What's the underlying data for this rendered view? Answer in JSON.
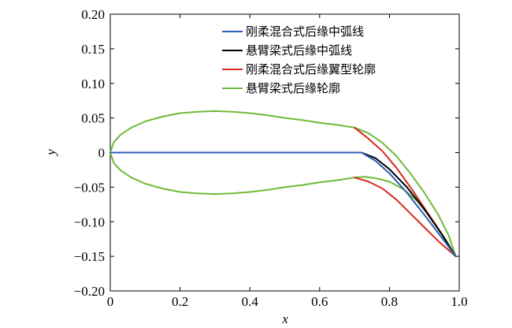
{
  "chart_data": {
    "type": "line",
    "title": "",
    "xlabel": "x",
    "ylabel": "y",
    "xlim": [
      0,
      1.0
    ],
    "ylim": [
      -0.2,
      0.2
    ],
    "xticks": [
      0,
      0.2,
      0.4,
      0.6,
      0.8,
      1.0
    ],
    "xtick_labels": [
      "0",
      "0.2",
      "0.4",
      "0.6",
      "0.8",
      "1.0"
    ],
    "yticks": [
      0.2,
      0.15,
      0.1,
      0.05,
      0,
      -0.05,
      -0.1,
      -0.15,
      -0.2
    ],
    "ytick_labels": [
      "0.20",
      "0.15",
      "0.10",
      "0.05",
      "0",
      "−0.05",
      "−0.10",
      "−0.15",
      "−0.20"
    ],
    "grid": false,
    "legend_position": "top-right",
    "series": [
      {
        "name": "刚柔混合式后缘中弧线",
        "color": "#2b5fb8",
        "points": [
          {
            "x": 0.0,
            "y": 0.0
          },
          {
            "x": 0.7,
            "y": 0.0
          },
          {
            "x": 0.72,
            "y": 0.0
          },
          {
            "x": 0.76,
            "y": -0.012
          },
          {
            "x": 0.8,
            "y": -0.03
          },
          {
            "x": 0.85,
            "y": -0.058
          },
          {
            "x": 0.9,
            "y": -0.09
          },
          {
            "x": 0.95,
            "y": -0.123
          },
          {
            "x": 0.99,
            "y": -0.15
          }
        ]
      },
      {
        "name": "悬臂梁式后缘中弧线",
        "color": "#000000",
        "points": [
          {
            "x": 0.0,
            "y": 0.0
          },
          {
            "x": 0.7,
            "y": 0.0
          },
          {
            "x": 0.72,
            "y": 0.0
          },
          {
            "x": 0.76,
            "y": -0.008
          },
          {
            "x": 0.8,
            "y": -0.024
          },
          {
            "x": 0.85,
            "y": -0.05
          },
          {
            "x": 0.9,
            "y": -0.082
          },
          {
            "x": 0.95,
            "y": -0.118
          },
          {
            "x": 0.99,
            "y": -0.15
          }
        ]
      },
      {
        "name": "刚柔混合式后缘翼型轮廓",
        "color": "#d62b20",
        "points": [
          {
            "x": 0.7,
            "y": 0.036
          },
          {
            "x": 0.74,
            "y": 0.02
          },
          {
            "x": 0.78,
            "y": 0.002
          },
          {
            "x": 0.82,
            "y": -0.022
          },
          {
            "x": 0.86,
            "y": -0.05
          },
          {
            "x": 0.9,
            "y": -0.08
          },
          {
            "x": 0.94,
            "y": -0.11
          },
          {
            "x": 0.99,
            "y": -0.15
          },
          {
            "x": 0.94,
            "y": -0.128
          },
          {
            "x": 0.9,
            "y": -0.108
          },
          {
            "x": 0.86,
            "y": -0.088
          },
          {
            "x": 0.82,
            "y": -0.068
          },
          {
            "x": 0.78,
            "y": -0.052
          },
          {
            "x": 0.74,
            "y": -0.042
          },
          {
            "x": 0.7,
            "y": -0.036
          }
        ]
      },
      {
        "name": "悬臂梁式后缘轮廓",
        "color": "#6fba3a",
        "points": [
          {
            "x": 0.0,
            "y": 0.0
          },
          {
            "x": 0.01,
            "y": 0.015
          },
          {
            "x": 0.03,
            "y": 0.026
          },
          {
            "x": 0.06,
            "y": 0.036
          },
          {
            "x": 0.1,
            "y": 0.045
          },
          {
            "x": 0.15,
            "y": 0.052
          },
          {
            "x": 0.2,
            "y": 0.057
          },
          {
            "x": 0.25,
            "y": 0.059
          },
          {
            "x": 0.3,
            "y": 0.06
          },
          {
            "x": 0.35,
            "y": 0.059
          },
          {
            "x": 0.4,
            "y": 0.057
          },
          {
            "x": 0.45,
            "y": 0.054
          },
          {
            "x": 0.5,
            "y": 0.05
          },
          {
            "x": 0.55,
            "y": 0.047
          },
          {
            "x": 0.6,
            "y": 0.043
          },
          {
            "x": 0.65,
            "y": 0.04
          },
          {
            "x": 0.7,
            "y": 0.036
          },
          {
            "x": 0.74,
            "y": 0.028
          },
          {
            "x": 0.78,
            "y": 0.014
          },
          {
            "x": 0.82,
            "y": -0.005
          },
          {
            "x": 0.86,
            "y": -0.03
          },
          {
            "x": 0.9,
            "y": -0.058
          },
          {
            "x": 0.94,
            "y": -0.09
          },
          {
            "x": 0.97,
            "y": -0.12
          },
          {
            "x": 0.99,
            "y": -0.15
          },
          {
            "x": 0.96,
            "y": -0.125
          },
          {
            "x": 0.92,
            "y": -0.095
          },
          {
            "x": 0.88,
            "y": -0.07
          },
          {
            "x": 0.84,
            "y": -0.053
          },
          {
            "x": 0.8,
            "y": -0.042
          },
          {
            "x": 0.76,
            "y": -0.037
          },
          {
            "x": 0.73,
            "y": -0.035
          },
          {
            "x": 0.7,
            "y": -0.036
          },
          {
            "x": 0.65,
            "y": -0.04
          },
          {
            "x": 0.6,
            "y": -0.043
          },
          {
            "x": 0.55,
            "y": -0.047
          },
          {
            "x": 0.5,
            "y": -0.05
          },
          {
            "x": 0.45,
            "y": -0.054
          },
          {
            "x": 0.4,
            "y": -0.057
          },
          {
            "x": 0.35,
            "y": -0.059
          },
          {
            "x": 0.3,
            "y": -0.06
          },
          {
            "x": 0.25,
            "y": -0.059
          },
          {
            "x": 0.2,
            "y": -0.057
          },
          {
            "x": 0.15,
            "y": -0.052
          },
          {
            "x": 0.1,
            "y": -0.045
          },
          {
            "x": 0.06,
            "y": -0.036
          },
          {
            "x": 0.03,
            "y": -0.026
          },
          {
            "x": 0.01,
            "y": -0.015
          },
          {
            "x": 0.0,
            "y": 0.0
          }
        ]
      }
    ]
  }
}
